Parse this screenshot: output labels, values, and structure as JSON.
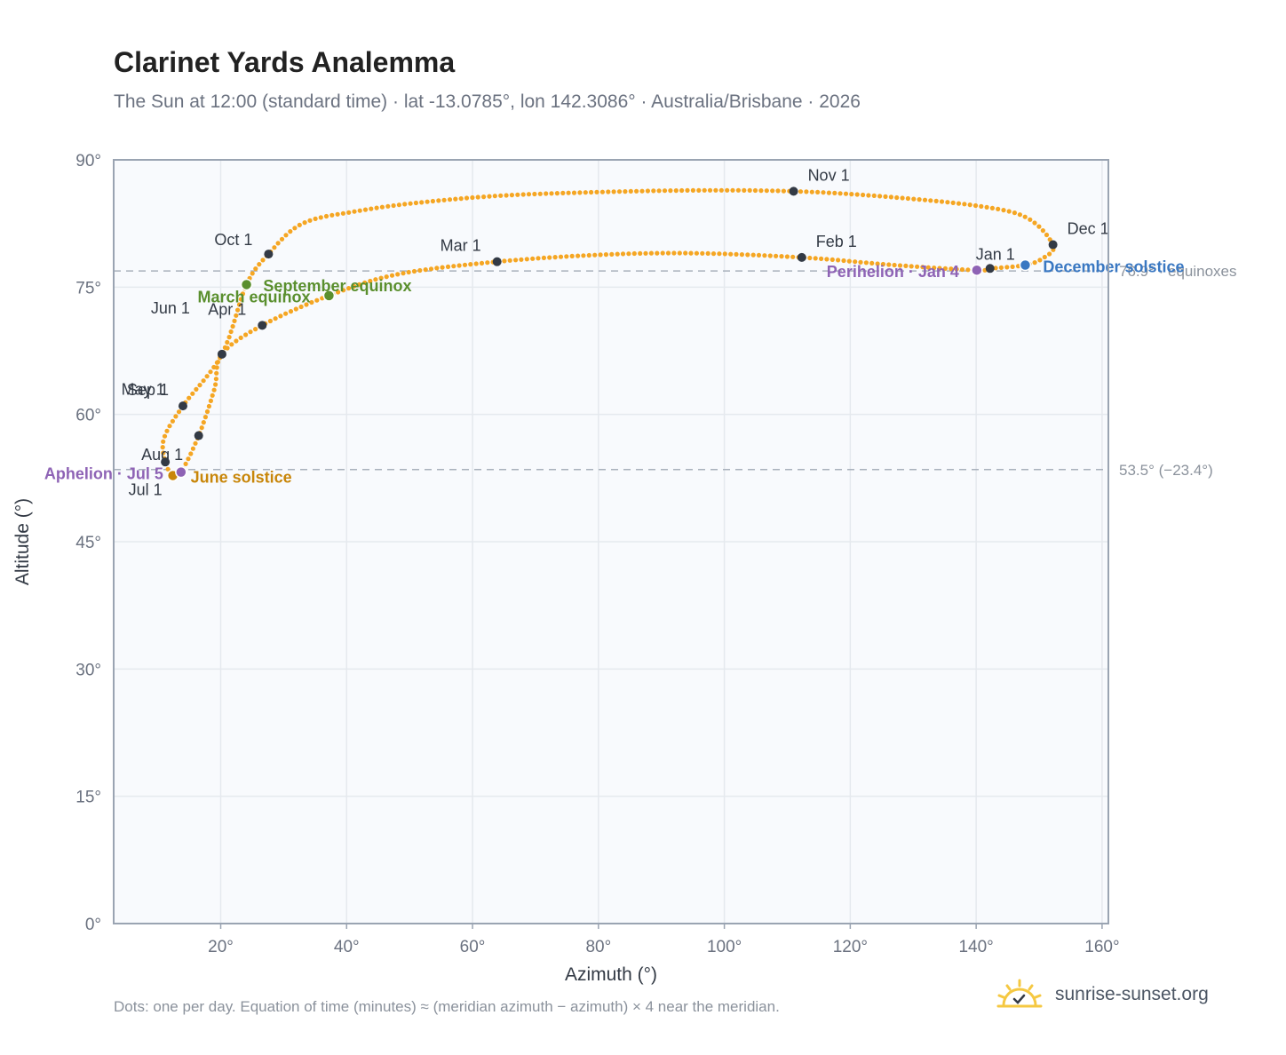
{
  "header": {
    "title": "Clarinet Yards Analemma",
    "subtitle": "The Sun at 12:00 (standard time) · lat -13.0785°, lon 142.3086° · Australia/Brisbane · 2026"
  },
  "footer": {
    "note": "Dots: one per day. Equation of time (minutes) ≈ (meridian azimuth − azimuth) × 4 near the meridian.",
    "brand": "sunrise-sunset.org"
  },
  "colors": {
    "curve": "#f5a623",
    "month_marker": "#333a45",
    "equinox": "#5a8f2e",
    "june_solstice": "#c8860a",
    "december_solstice": "#3a78c2",
    "apsis": "#8e63b5",
    "grid": "#e5e9ee",
    "plot_bg": "#f8fafd",
    "frame": "#9aa4b2"
  },
  "chart_data": {
    "type": "scatter",
    "xlabel": "Azimuth (°)",
    "ylabel": "Altitude (°)",
    "xlim": [
      3,
      161
    ],
    "ylim": [
      0,
      90
    ],
    "x_ticks": [
      20,
      40,
      60,
      80,
      100,
      120,
      140,
      160
    ],
    "y_ticks": [
      0,
      15,
      30,
      45,
      60,
      75,
      90
    ],
    "x_tick_labels": [
      "20°",
      "40°",
      "60°",
      "80°",
      "100°",
      "120°",
      "140°",
      "160°"
    ],
    "y_tick_labels": [
      "0°",
      "15°",
      "30°",
      "45°",
      "60°",
      "75°",
      "90°"
    ],
    "grid": true,
    "daily_path": [
      [
        142.2,
        77.2
      ],
      [
        147.8,
        77.6
      ],
      [
        150.8,
        78.5
      ],
      [
        152.2,
        80.0
      ],
      [
        148.0,
        83.2
      ],
      [
        140.0,
        84.6
      ],
      [
        125.0,
        85.7
      ],
      [
        111.0,
        86.3
      ],
      [
        95.0,
        86.4
      ],
      [
        80.0,
        86.2
      ],
      [
        65.0,
        85.8
      ],
      [
        52.0,
        85.0
      ],
      [
        42.0,
        84.0
      ],
      [
        33.0,
        82.5
      ],
      [
        27.6,
        78.9
      ],
      [
        24.1,
        75.3
      ],
      [
        20.2,
        67.1
      ],
      [
        14.0,
        61.0
      ],
      [
        11.0,
        57.2
      ],
      [
        11.2,
        54.4
      ],
      [
        12.4,
        52.8
      ],
      [
        13.7,
        53.2
      ],
      [
        16.5,
        57.5
      ],
      [
        19.0,
        63.0
      ],
      [
        20.2,
        67.1
      ],
      [
        26.6,
        70.5
      ],
      [
        37.2,
        74.0
      ],
      [
        48.0,
        76.5
      ],
      [
        63.9,
        78.0
      ],
      [
        80.0,
        78.8
      ],
      [
        95.0,
        79.0
      ],
      [
        112.3,
        78.5
      ],
      [
        127.0,
        77.6
      ],
      [
        140.1,
        77.0
      ],
      [
        142.2,
        77.2
      ]
    ],
    "reference_lines": [
      {
        "y": 76.9,
        "label": "76.9° · equinoxes"
      },
      {
        "y": 53.5,
        "label": "53.5° (−23.4°)"
      }
    ],
    "month_markers": [
      {
        "label": "Jan 1",
        "x": 142.2,
        "y": 77.2
      },
      {
        "label": "Feb 1",
        "x": 112.3,
        "y": 78.5
      },
      {
        "label": "Mar 1",
        "x": 63.9,
        "y": 78.0
      },
      {
        "label": "Apr 1",
        "x": 26.6,
        "y": 70.5
      },
      {
        "label": "May 1",
        "x": 16.5,
        "y": 57.5
      },
      {
        "label": "Jun 1",
        "x": 20.2,
        "y": 67.1
      },
      {
        "label": "Jul 1",
        "x": 12.4,
        "y": 52.8
      },
      {
        "label": "Aug 1",
        "x": 11.2,
        "y": 54.4
      },
      {
        "label": "Sep 1",
        "x": 14.0,
        "y": 61.0
      },
      {
        "label": "Oct 1",
        "x": 27.6,
        "y": 78.9
      },
      {
        "label": "Nov 1",
        "x": 111.0,
        "y": 86.3
      },
      {
        "label": "Dec 1",
        "x": 152.2,
        "y": 80.0
      }
    ],
    "events": [
      {
        "label": "March equinox",
        "x": 24.1,
        "y": 75.3,
        "kind": "equinox"
      },
      {
        "label": "September equinox",
        "x": 37.2,
        "y": 74.0,
        "kind": "equinox"
      },
      {
        "label": "June solstice",
        "x": 12.4,
        "y": 52.8,
        "kind": "june_solstice"
      },
      {
        "label": "December solstice",
        "x": 147.8,
        "y": 77.6,
        "kind": "december_solstice"
      },
      {
        "label": "Perihelion · Jan 4",
        "x": 140.1,
        "y": 77.0,
        "kind": "apsis"
      },
      {
        "label": "Aphelion · Jul 5",
        "x": 13.7,
        "y": 53.2,
        "kind": "apsis"
      }
    ]
  }
}
